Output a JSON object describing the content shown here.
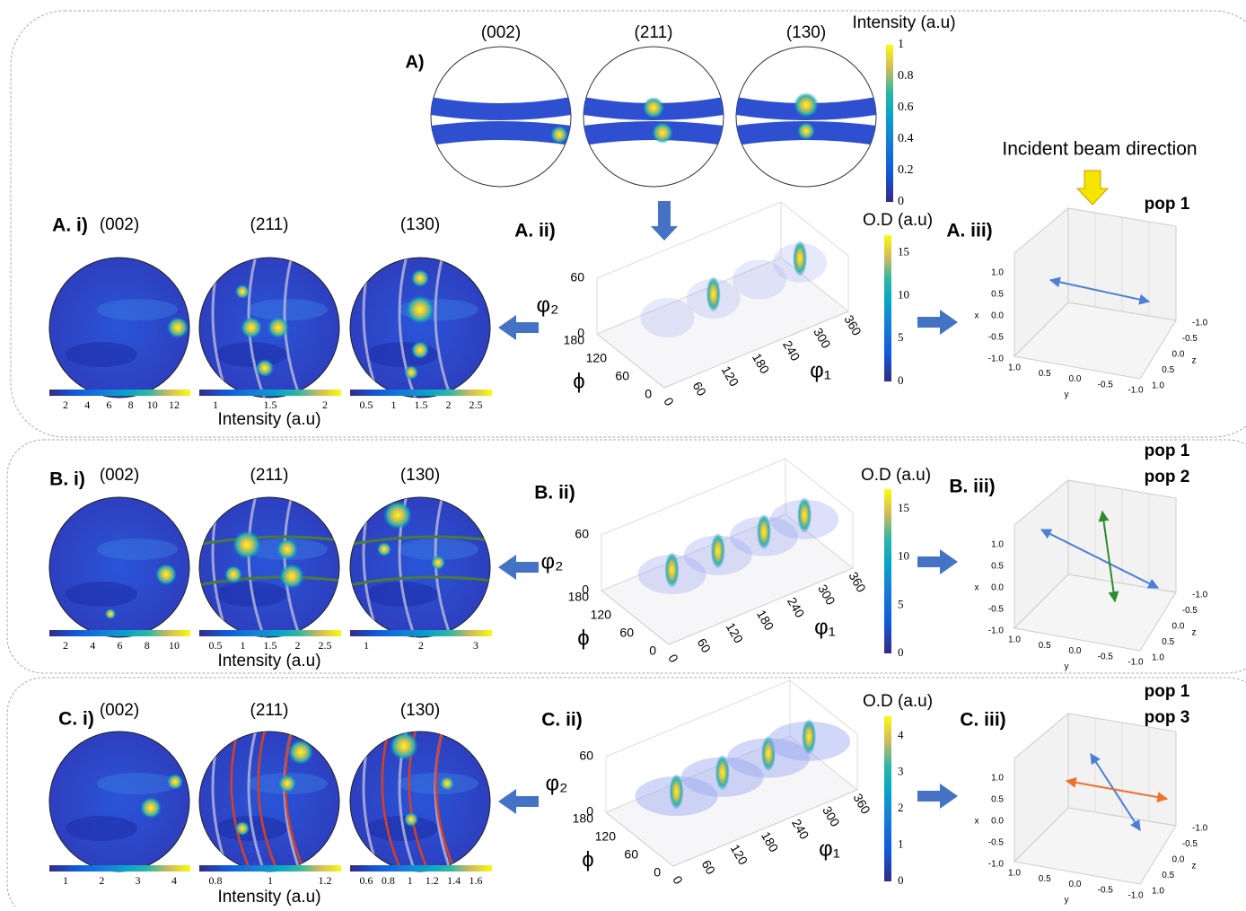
{
  "top": {
    "label": "A)",
    "poles": [
      "(002)",
      "(211)",
      "(130)"
    ],
    "colorbar_title": "Intensity (a.u)",
    "colorbar_ticks": [
      "0",
      "0.2",
      "0.4",
      "0.6",
      "0.8",
      "1"
    ]
  },
  "beam_label": "Incident beam direction",
  "rows": [
    {
      "label_i": "A. i)",
      "poles": [
        "(002)",
        "(211)",
        "(130)"
      ],
      "colorbar_ticks": [
        [
          "2",
          "4",
          "6",
          "8",
          "10",
          "12"
        ],
        [
          "1",
          "1.5",
          "2"
        ],
        [
          "0.5",
          "1",
          "1.5",
          "2",
          "2.5"
        ]
      ],
      "intensity_label": "Intensity (a.u)",
      "odf": {
        "label": "A. ii)",
        "colorbar_title": "O.D (a.u)",
        "colorbar_ticks": [
          "0",
          "5",
          "10",
          "15"
        ],
        "phi2": "φ₂",
        "phi2_ticks": [
          "0",
          "60"
        ],
        "phi": "ϕ",
        "phi_ticks": [
          "0",
          "60",
          "120",
          "180"
        ],
        "phi1": "φ₁",
        "phi1_ticks": [
          "0",
          "60",
          "120",
          "180",
          "240",
          "300",
          "360"
        ]
      },
      "iii": {
        "label": "A. iii)",
        "pops": [
          {
            "name": "pop 1",
            "color": "#4a7fd4"
          }
        ],
        "x_ticks": [
          "1.0",
          "0.5",
          "0.0",
          "-0.5",
          "-1.0"
        ],
        "y_ticks": [
          "1.0",
          "0.5",
          "0.0",
          "-0.5",
          "-1.0"
        ],
        "z_ticks": [
          "-1.0",
          "-0.5",
          "0.0",
          "0.5",
          "1.0"
        ],
        "axes": [
          "x",
          "y",
          "z"
        ]
      }
    },
    {
      "label_i": "B. i)",
      "poles": [
        "(002)",
        "(211)",
        "(130)"
      ],
      "colorbar_ticks": [
        [
          "2",
          "4",
          "6",
          "8",
          "10"
        ],
        [
          "0.5",
          "1",
          "1.5",
          "2",
          "2.5"
        ],
        [
          "1",
          "2",
          "3"
        ]
      ],
      "intensity_label": "Intensity (a.u)",
      "odf": {
        "label": "B. ii)",
        "colorbar_title": "O.D (a.u)",
        "colorbar_ticks": [
          "0",
          "5",
          "10",
          "15"
        ],
        "phi2": "φ₂",
        "phi2_ticks": [
          "0",
          "60"
        ],
        "phi": "ϕ",
        "phi_ticks": [
          "0",
          "60",
          "120",
          "180"
        ],
        "phi1": "φ₁",
        "phi1_ticks": [
          "0",
          "60",
          "120",
          "180",
          "240",
          "300",
          "360"
        ]
      },
      "iii": {
        "label": "B. iii)",
        "pops": [
          {
            "name": "pop 1",
            "color": "#4a7fd4"
          },
          {
            "name": "pop 2",
            "color": "#2e8b2e"
          }
        ],
        "x_ticks": [
          "1.0",
          "0.5",
          "0.0",
          "-0.5",
          "-1.0"
        ],
        "y_ticks": [
          "1.0",
          "0.5",
          "0.0",
          "-0.5",
          "-1.0"
        ],
        "z_ticks": [
          "-1.0",
          "-0.5",
          "0.0",
          "0.5",
          "1.0"
        ],
        "axes": [
          "x",
          "y",
          "z"
        ]
      }
    },
    {
      "label_i": "C. i)",
      "poles": [
        "(002)",
        "(211)",
        "(130)"
      ],
      "colorbar_ticks": [
        [
          "1",
          "2",
          "3",
          "4"
        ],
        [
          "0.8",
          "1",
          "1.2"
        ],
        [
          "0.6",
          "0.8",
          "1",
          "1.2",
          "1.4",
          "1.6"
        ]
      ],
      "intensity_label": "Intensity (a.u)",
      "odf": {
        "label": "C. ii)",
        "colorbar_title": "O.D (a.u)",
        "colorbar_ticks": [
          "0",
          "1",
          "2",
          "3",
          "4"
        ],
        "phi2": "φ₂",
        "phi2_ticks": [
          "0",
          "60"
        ],
        "phi": "ϕ",
        "phi_ticks": [
          "0",
          "60",
          "120",
          "180"
        ],
        "phi1": "φ₁",
        "phi1_ticks": [
          "0",
          "60",
          "120",
          "180",
          "240",
          "300",
          "360"
        ]
      },
      "iii": {
        "label": "C. iii)",
        "pops": [
          {
            "name": "pop 1",
            "color": "#4a7fd4"
          },
          {
            "name": "pop 3",
            "color": "#f07030"
          }
        ],
        "x_ticks": [
          "1.0",
          "0.5",
          "0.0",
          "-0.5",
          "-1.0"
        ],
        "y_ticks": [
          "1.0",
          "0.5",
          "0.0",
          "-0.5",
          "-1.0"
        ],
        "z_ticks": [
          "-1.0",
          "-0.5",
          "0.0",
          "0.5",
          "1.0"
        ],
        "axes": [
          "x",
          "y",
          "z"
        ]
      }
    }
  ]
}
